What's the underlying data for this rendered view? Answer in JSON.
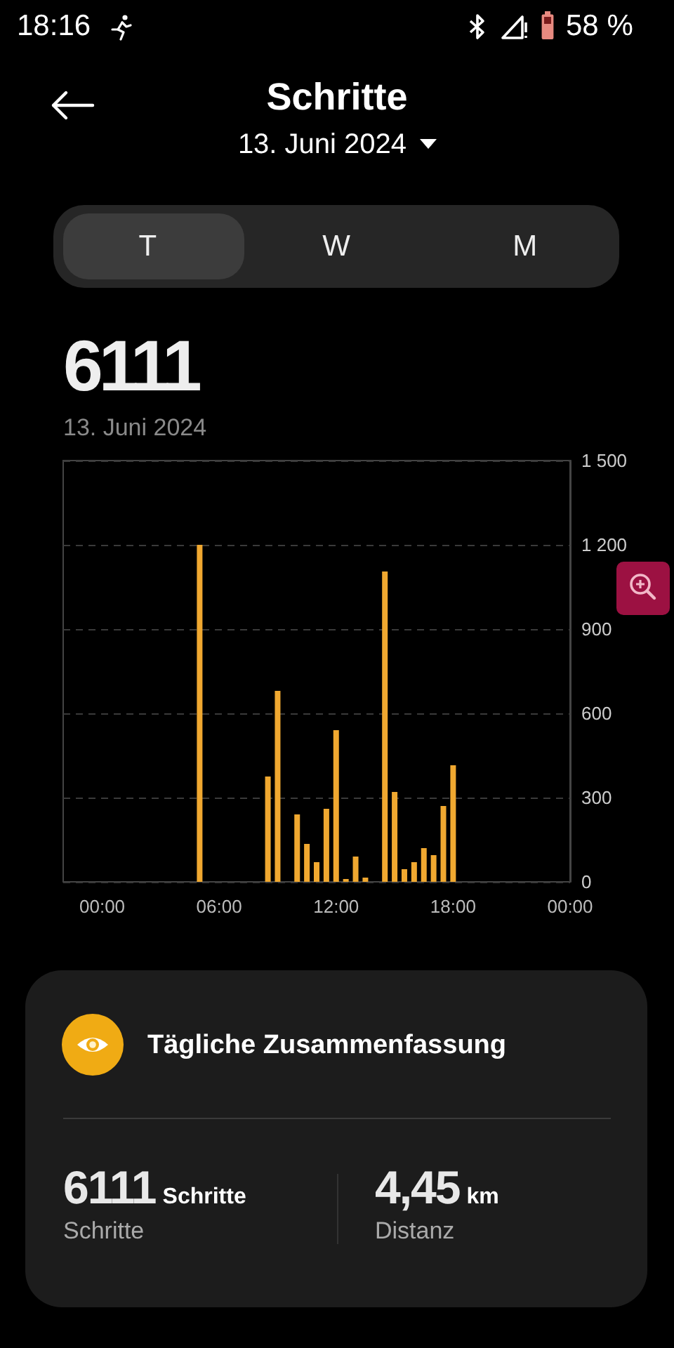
{
  "chart_data": [
    {
      "type": "other",
      "title": "Schritte",
      "subtitle": "13. Juni 2024",
      "annotations": [
        "18:16",
        "58 %",
        "T",
        "W",
        "M"
      ]
    },
    {
      "type": "bar",
      "title": "6111",
      "subtitle": "13. Juni 2024",
      "x": [
        5,
        8.5,
        9,
        10,
        10.5,
        11,
        11.5,
        12,
        12.5,
        13,
        13.5,
        14.5,
        15,
        15.5,
        16,
        16.5,
        17,
        17.5,
        18
      ],
      "values": [
        1200,
        375,
        680,
        240,
        135,
        70,
        260,
        540,
        10,
        90,
        15,
        1105,
        320,
        45,
        70,
        120,
        95,
        270,
        415
      ],
      "color": "#f0a830",
      "xlim": [
        -2,
        24
      ],
      "xticks": [
        {
          "value": 0,
          "label": "00:00"
        },
        {
          "value": 6,
          "label": "06:00"
        },
        {
          "value": 12,
          "label": "12:00"
        },
        {
          "value": 18,
          "label": "18:00"
        },
        {
          "value": 24,
          "label": "00:00"
        }
      ],
      "ylim": [
        0,
        1500
      ],
      "yticks": [
        0,
        300,
        600,
        900,
        {
          "value": 1200,
          "label": "1 200"
        },
        {
          "value": 1500,
          "label": "1 500"
        }
      ],
      "grid": "y"
    },
    {
      "type": "other",
      "title": "Tägliche Zusammenfassung",
      "annotations": [
        "6111",
        "Schritte",
        "Schritte",
        "4,45",
        "km",
        "Distanz"
      ]
    }
  ]
}
